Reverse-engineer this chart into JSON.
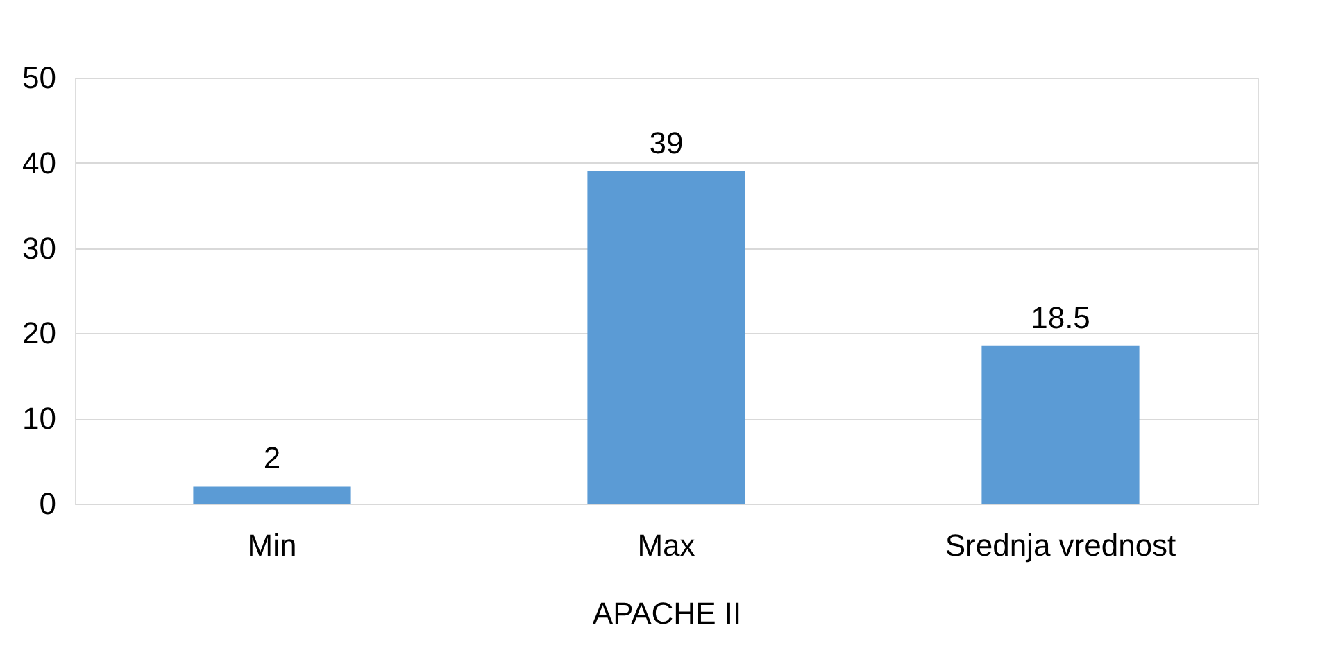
{
  "chart_data": {
    "type": "bar",
    "xlabel": "APACHE II",
    "categories": [
      "Min",
      "Max",
      "Srednja vrednost"
    ],
    "values": [
      2,
      39,
      18.5
    ],
    "color": "#5b9bd5",
    "ylim": [
      0,
      50
    ],
    "yticks": [
      0,
      10,
      20,
      30,
      40,
      50
    ],
    "grid": "y",
    "data_labels": true
  }
}
